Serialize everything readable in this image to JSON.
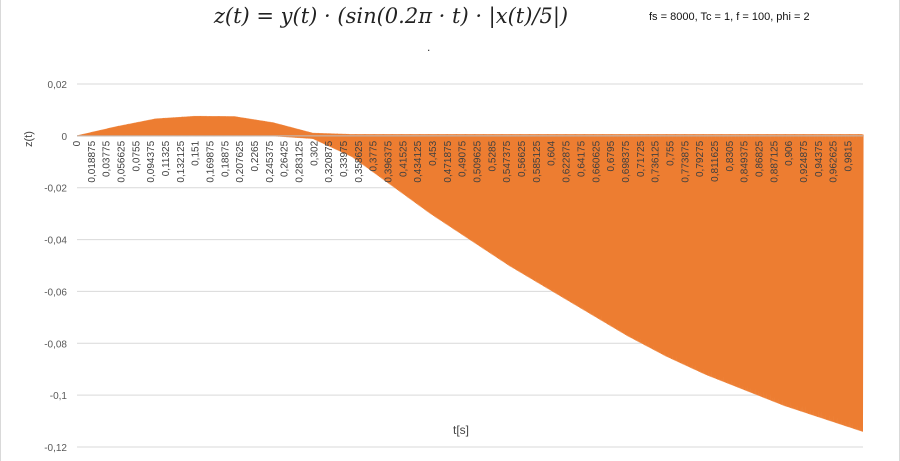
{
  "chart_data": {
    "type": "line",
    "title": "z(t) = y(t) · (sin(0.2π · t) · |x(t)/5|)",
    "subtitle": ".",
    "annotation": "fs = 8000, Tc = 1, f = 100, phi = 2",
    "xlabel": "t[s]",
    "ylabel": "z(t)",
    "ylim": [
      -0.12,
      0.02
    ],
    "xlim": [
      0,
      1
    ],
    "y_ticks": [
      "0,02",
      "0",
      "-0,02",
      "-0,04",
      "-0,06",
      "-0,08",
      "-0,1",
      "-0,12"
    ],
    "y_tick_values": [
      0.02,
      0,
      -0.02,
      -0.04,
      -0.06,
      -0.08,
      -0.1,
      -0.12
    ],
    "x_ticks": [
      "0",
      "0,018875",
      "0,03775",
      "0,056625",
      "0,0755",
      "0,094375",
      "0,11325",
      "0,132125",
      "0,151",
      "0,169875",
      "0,18875",
      "0,207625",
      "0,2265",
      "0,245375",
      "0,26425",
      "0,283125",
      "0,302",
      "0,320875",
      "0,33975",
      "0,358625",
      "0,3775",
      "0,396375",
      "0,41525",
      "0,434125",
      "0,453",
      "0,471875",
      "0,49075",
      "0,509625",
      "0,5285",
      "0,547375",
      "0,56625",
      "0,585125",
      "0,604",
      "0,622875",
      "0,64175",
      "0,660625",
      "0,6795",
      "0,698375",
      "0,71725",
      "0,736125",
      "0,755",
      "0,773875",
      "0,79275",
      "0,811625",
      "0,8305",
      "0,849375",
      "0,86825",
      "0,887125",
      "0,906",
      "0,924875",
      "0,94375",
      "0,962625",
      "0,9815"
    ],
    "grid": true,
    "legend": "none",
    "series": [
      {
        "color": "#ED7D31",
        "envelope_t": [
          0,
          0.05,
          0.1,
          0.15,
          0.2,
          0.25,
          0.3,
          0.35,
          0.4,
          0.45,
          0.5,
          0.55,
          0.6,
          0.65,
          0.7,
          0.75,
          0.8,
          0.85,
          0.9,
          0.95,
          1.0
        ],
        "envelope_max": [
          0,
          0.0035,
          0.0065,
          0.0075,
          0.0074,
          0.005,
          0.001,
          0.0005,
          0.0005,
          0.0005,
          0.0005,
          0.0005,
          0.0005,
          0.0005,
          0.0005,
          0.0005,
          0.0005,
          0.0005,
          0.0005,
          0.0005,
          0.0005
        ],
        "envelope_min": [
          0,
          0,
          0,
          0,
          0,
          0,
          -0.001,
          -0.008,
          -0.019,
          -0.03,
          -0.04,
          -0.05,
          -0.059,
          -0.068,
          -0.077,
          -0.085,
          -0.092,
          -0.098,
          -0.104,
          -0.109,
          -0.114
        ]
      }
    ]
  }
}
